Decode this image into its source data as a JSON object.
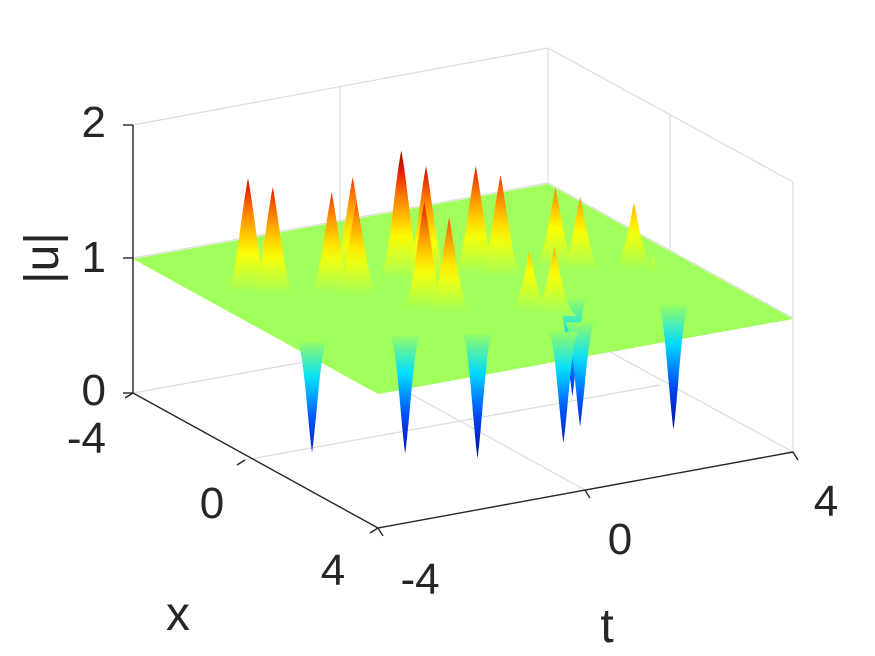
{
  "chart_data": {
    "type": "surface",
    "title": "",
    "xlabel": "t",
    "ylabel": "x",
    "zlabel": "|u|",
    "xlim": [
      -4,
      4
    ],
    "ylim": [
      -4,
      4
    ],
    "zlim": [
      0,
      2
    ],
    "x_ticks": [
      "-4",
      "0",
      "4"
    ],
    "y_ticks": [
      "-4",
      "0",
      "4"
    ],
    "z_ticks": [
      "0",
      "1",
      "2"
    ],
    "background_level": 1,
    "colormap": "jet",
    "grid": true,
    "peaks": [
      {
        "t": -3.2,
        "x": -1.6,
        "value": 1.85
      },
      {
        "t": -2.9,
        "x": -1.3,
        "value": 1.8
      },
      {
        "t": -2.0,
        "x": -0.9,
        "value": 1.75
      },
      {
        "t": -1.7,
        "x": -0.6,
        "value": 1.7
      },
      {
        "t": -1.3,
        "x": -1.4,
        "value": 1.75
      },
      {
        "t": -1.1,
        "x": 0.6,
        "value": 1.8
      },
      {
        "t": -0.8,
        "x": 0.9,
        "value": 1.7
      },
      {
        "t": -0.6,
        "x": -1.0,
        "value": 1.95
      },
      {
        "t": -0.3,
        "x": -0.7,
        "value": 1.85
      },
      {
        "t": 0.4,
        "x": 1.5,
        "value": 1.45
      },
      {
        "t": 0.7,
        "x": 1.8,
        "value": 1.5
      },
      {
        "t": 0.6,
        "x": -0.6,
        "value": 1.8
      },
      {
        "t": 0.9,
        "x": -0.3,
        "value": 1.75
      },
      {
        "t": 1.9,
        "x": -0.2,
        "value": 1.6
      },
      {
        "t": 2.2,
        "x": 0.1,
        "value": 1.55
      },
      {
        "t": 3.0,
        "x": 0.5,
        "value": 1.5
      },
      {
        "t": 3.2,
        "x": 0.8,
        "value": 1.15
      }
    ],
    "dips": [
      {
        "t": -3.5,
        "x": 1.0,
        "value": 0.15
      },
      {
        "t": -2.0,
        "x": 1.5,
        "value": 0.1
      },
      {
        "t": -0.9,
        "x": 2.0,
        "value": 0.05
      },
      {
        "t": 0.4,
        "x": 2.6,
        "value": 0.15
      },
      {
        "t": 0.9,
        "x": 2.3,
        "value": 0.2
      },
      {
        "t": 1.4,
        "x": 1.2,
        "value": 0.25
      },
      {
        "t": 2.7,
        "x": 2.3,
        "value": 0.05
      }
    ]
  }
}
